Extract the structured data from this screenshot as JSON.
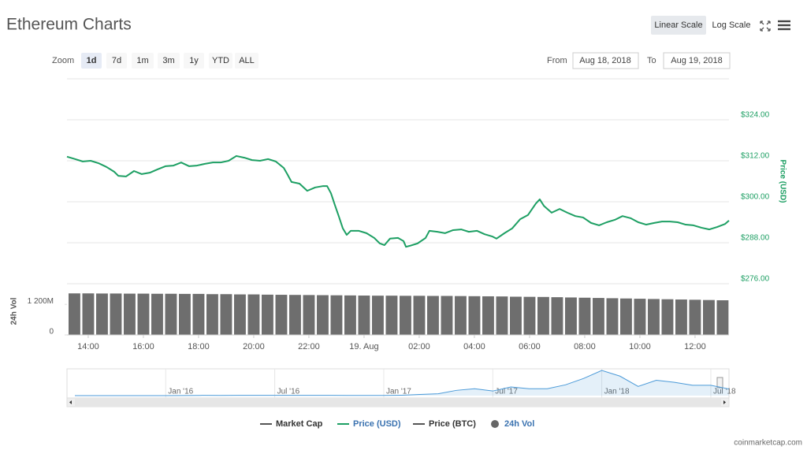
{
  "title": "Ethereum Charts",
  "scale_options": [
    "Linear Scale",
    "Log Scale"
  ],
  "selected_scale": 0,
  "zoom_label": "Zoom",
  "zoom_options": [
    "1d",
    "7d",
    "1m",
    "3m",
    "1y",
    "YTD",
    "ALL"
  ],
  "selected_zoom": 0,
  "from_label": "From",
  "from_date": "Aug 18, 2018",
  "to_label": "To",
  "to_date": "Aug 19, 2018",
  "legend": [
    {
      "name": "Market Cap",
      "marker": "line",
      "color": "#555555",
      "active": false
    },
    {
      "name": "Price (USD)",
      "marker": "line",
      "color": "#1d9f63",
      "active": true
    },
    {
      "name": "Price (BTC)",
      "marker": "line",
      "color": "#555555",
      "active": false
    },
    {
      "name": "24h Vol",
      "marker": "circle",
      "color": "#666666",
      "active": true
    }
  ],
  "credit": "coinmarketcap.com",
  "chart_data": [
    {
      "type": "line",
      "y_label": "Price (USD)",
      "xlim": [
        13.23,
        37.23
      ],
      "ylim": [
        276,
        336
      ],
      "yticks": [
        {
          "value": 276,
          "label": "$276.00"
        },
        {
          "value": 288,
          "label": "$288.00"
        },
        {
          "value": 300,
          "label": "$300.00"
        },
        {
          "value": 312,
          "label": "$312.00"
        },
        {
          "value": 324,
          "label": "$324.00"
        }
      ],
      "grid": true,
      "series": [
        {
          "name": "Price (USD)",
          "color": "#1d9f63",
          "x": [
            13.23,
            13.52,
            13.8,
            14.09,
            14.37,
            14.66,
            14.94,
            15.09,
            15.37,
            15.66,
            15.94,
            16.23,
            16.52,
            16.8,
            17.09,
            17.37,
            17.66,
            17.94,
            18.23,
            18.52,
            18.8,
            19.09,
            19.37,
            19.66,
            19.94,
            20.23,
            20.52,
            20.8,
            21.09,
            21.23,
            21.37,
            21.66,
            21.94,
            22.23,
            22.52,
            22.66,
            22.8,
            22.94,
            23.09,
            23.23,
            23.37,
            23.52,
            23.8,
            24.09,
            24.37,
            24.57,
            24.74,
            24.94,
            25.23,
            25.43,
            25.52,
            25.66,
            25.94,
            26.23,
            26.37,
            26.66,
            26.94,
            27.23,
            27.52,
            27.8,
            28.09,
            28.37,
            28.66,
            28.8,
            29.09,
            29.37,
            29.66,
            29.94,
            30.23,
            30.37,
            30.52,
            30.8,
            31.09,
            31.37,
            31.66,
            31.94,
            32.23,
            32.52,
            32.8,
            33.09,
            33.37,
            33.66,
            33.94,
            34.23,
            34.52,
            34.8,
            35.09,
            35.37,
            35.66,
            35.94,
            36.23,
            36.52,
            36.8,
            37.09,
            37.23
          ],
          "values": [
            313.2,
            312.5,
            311.8,
            312.0,
            311.3,
            310.2,
            308.8,
            307.6,
            307.4,
            309.0,
            308.1,
            308.5,
            309.5,
            310.4,
            310.6,
            311.5,
            310.4,
            310.6,
            311.1,
            311.5,
            311.5,
            312.0,
            313.4,
            312.9,
            312.2,
            312.0,
            312.5,
            311.8,
            309.9,
            307.9,
            305.8,
            305.3,
            303.2,
            304.2,
            304.6,
            304.6,
            302.5,
            299.1,
            295.6,
            292.2,
            290.3,
            291.5,
            291.5,
            290.8,
            289.4,
            287.8,
            287.3,
            289.2,
            289.4,
            288.5,
            286.8,
            287.1,
            287.8,
            289.4,
            291.5,
            291.2,
            290.8,
            291.7,
            291.9,
            291.2,
            291.5,
            290.5,
            289.8,
            289.2,
            290.8,
            292.2,
            294.9,
            296.1,
            299.5,
            300.7,
            298.8,
            296.8,
            297.9,
            296.8,
            295.8,
            295.4,
            293.8,
            293.1,
            294.0,
            294.7,
            295.8,
            295.2,
            294.0,
            293.3,
            293.8,
            294.2,
            294.2,
            294.0,
            293.3,
            293.1,
            292.4,
            291.9,
            292.6,
            293.5,
            294.5
          ]
        }
      ]
    },
    {
      "type": "bar",
      "y_label": "24h Vol",
      "xlim": [
        13.23,
        37.23
      ],
      "ylim": [
        0,
        1700
      ],
      "yticks": [
        0,
        {
          "value": 1200,
          "label": "1 200M"
        }
      ],
      "xticks": [
        {
          "value": 14,
          "label": "14:00"
        },
        {
          "value": 16,
          "label": "16:00"
        },
        {
          "value": 18,
          "label": "18:00"
        },
        {
          "value": 20,
          "label": "20:00"
        },
        {
          "value": 22,
          "label": "22:00"
        },
        {
          "value": 24,
          "label": "19. Aug"
        },
        {
          "value": 26,
          "label": "02:00"
        },
        {
          "value": 28,
          "label": "04:00"
        },
        {
          "value": 30,
          "label": "06:00"
        },
        {
          "value": 32,
          "label": "08:00"
        },
        {
          "value": 34,
          "label": "10:00"
        },
        {
          "value": 36,
          "label": "12:00"
        }
      ],
      "series": [
        {
          "name": "24h Vol",
          "color": "#6e6e6e",
          "x": [
            13.5,
            14,
            14.5,
            15,
            15.5,
            16,
            16.5,
            17,
            17.5,
            18,
            18.5,
            19,
            19.5,
            20,
            20.5,
            21,
            21.5,
            22,
            22.5,
            23,
            23.5,
            24,
            24.5,
            25,
            25.5,
            26,
            26.5,
            27,
            27.5,
            28,
            28.5,
            29,
            29.5,
            30,
            30.5,
            31,
            31.5,
            32,
            32.5,
            33,
            33.5,
            34,
            34.5,
            35,
            35.5,
            36,
            36.5,
            37
          ],
          "values": [
            1630,
            1630,
            1625,
            1625,
            1620,
            1620,
            1615,
            1615,
            1610,
            1610,
            1600,
            1600,
            1590,
            1590,
            1580,
            1575,
            1570,
            1565,
            1560,
            1555,
            1550,
            1545,
            1540,
            1540,
            1535,
            1535,
            1530,
            1530,
            1525,
            1520,
            1515,
            1510,
            1500,
            1495,
            1490,
            1480,
            1470,
            1460,
            1450,
            1440,
            1430,
            1420,
            1410,
            1400,
            1390,
            1380,
            1370,
            1360
          ]
        }
      ]
    },
    {
      "type": "area",
      "color": "#4b9ad8",
      "categories": [
        null,
        null,
        null,
        null,
        null,
        "Jan '16",
        null,
        null,
        null,
        null,
        null,
        "Jul '16",
        null,
        null,
        null,
        null,
        null,
        "Jan '17",
        null,
        null,
        null,
        null,
        null,
        "Jul '17",
        null,
        null,
        null,
        null,
        null,
        "Jan '18",
        null,
        null,
        null,
        null,
        null,
        "Jul '18",
        null
      ],
      "values": [
        1.2,
        0.9,
        0.6,
        0.9,
        0.9,
        1.2,
        5,
        11,
        8,
        12,
        12,
        11,
        11,
        13,
        11,
        9,
        8,
        10,
        16,
        50,
        80,
        230,
        300,
        200,
        380,
        300,
        300,
        470,
        750,
        1100,
        850,
        400,
        670,
        580,
        450,
        450,
        290
      ]
    }
  ]
}
